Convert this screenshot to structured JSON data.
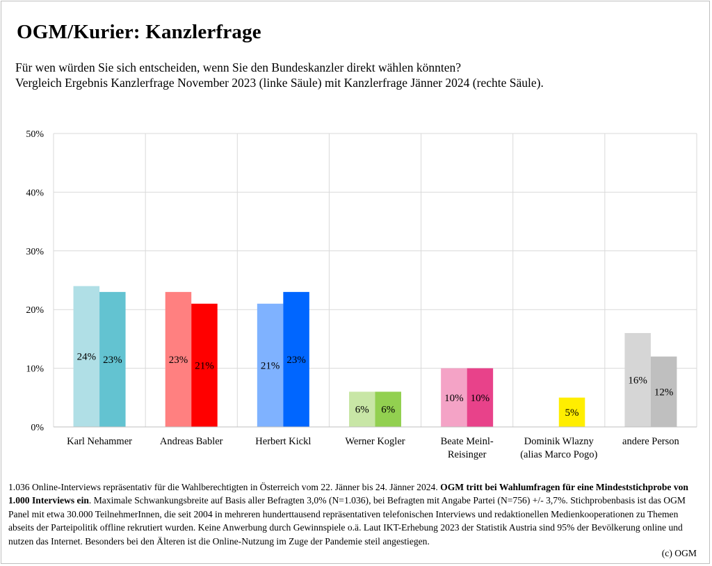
{
  "title": "OGM/Kurier: Kanzlerfrage",
  "subtitle_line1": "Für wen würden Sie sich entscheiden, wenn Sie den Bundeskanzler direkt wählen könnten?",
  "subtitle_line2": "Vergleich Ergebnis Kanzlerfrage November 2023 (linke Säule) mit Kanzlerfrage Jänner 2024 (rechte Säule).",
  "footer": {
    "text_1": "1.036 Online-Interviews repräsentativ für die Wahlberechtigten in Österreich vom 22. Jänner bis 24. Jänner 2024. ",
    "bold": "OGM tritt bei Wahlumfragen für eine Mindeststichprobe von 1.000 Interviews ein",
    "text_2": ". Maximale Schwankungsbreite auf Basis aller Befragten 3,0% (N=1.036), bei Befragten mit Angabe Partei (N=756) +/- 3,7%. Stichprobenbasis ist das OGM Panel mit etwa 30.000 TeilnehmerInnen, die seit 2004 in mehreren hunderttausend repräsentativen telefonischen Interviews und redaktionellen Medienkooperationen zu Themen abseits der Parteipolitik offline rekrutiert wurden. Keine Anwerbung durch Gewinnspiele o.ä. Laut IKT-Erhebung 2023 der Statistik Austria sind 95% der Bevölkerung online und nutzen das Internet. Besonders bei den Älteren ist die Online-Nutzung im Zuge der Pandemie steil angestiegen.",
    "copyright": "(c) OGM"
  },
  "chart_data": {
    "type": "bar",
    "categories": [
      [
        "Karl Nehammer"
      ],
      [
        "Andreas Babler"
      ],
      [
        "Herbert Kickl"
      ],
      [
        "Werner Kogler"
      ],
      [
        "Beate Meinl-",
        "Reisinger"
      ],
      [
        "Dominik Wlazny",
        "(alias Marco Pogo)"
      ],
      [
        "andere Person"
      ]
    ],
    "series": [
      {
        "values": [
          24,
          23,
          21,
          6,
          10,
          null,
          16
        ]
      },
      {
        "values": [
          23,
          21,
          23,
          6,
          10,
          5,
          12
        ]
      }
    ],
    "colors_left": [
      "#b0dfe6",
      "#ff8080",
      "#7fb2ff",
      "#c8e6a6",
      "#f4a3c6",
      "#ffff66",
      "#d6d6d6"
    ],
    "colors_right": [
      "#63c3d1",
      "#ff0000",
      "#0066ff",
      "#92d050",
      "#e8428a",
      "#ffee00",
      "#bfbfbf"
    ],
    "value_labels_left": [
      "24%",
      "23%",
      "21%",
      "6%",
      "10%",
      "",
      "16%"
    ],
    "value_labels_right": [
      "23%",
      "21%",
      "23%",
      "6%",
      "10%",
      "5%",
      "12%"
    ],
    "y_ticks": [
      0,
      10,
      20,
      30,
      40,
      50
    ],
    "y_tick_labels": [
      "0%",
      "10%",
      "20%",
      "30%",
      "40%",
      "50%"
    ],
    "ylim": [
      0,
      50
    ],
    "grid": true
  }
}
